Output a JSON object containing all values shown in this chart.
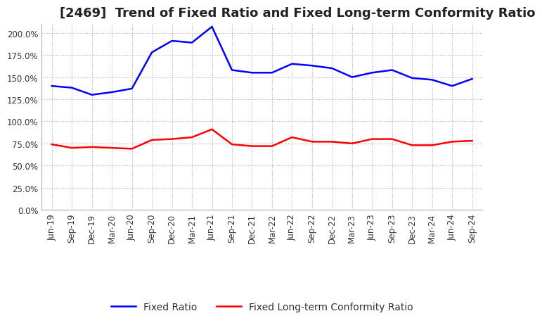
{
  "title": "[2469]  Trend of Fixed Ratio and Fixed Long-term Conformity Ratio",
  "x_labels": [
    "Jun-19",
    "Sep-19",
    "Dec-19",
    "Mar-20",
    "Jun-20",
    "Sep-20",
    "Dec-20",
    "Mar-21",
    "Jun-21",
    "Sep-21",
    "Dec-21",
    "Mar-22",
    "Jun-22",
    "Sep-22",
    "Dec-22",
    "Mar-23",
    "Jun-23",
    "Sep-23",
    "Dec-23",
    "Mar-24",
    "Jun-24",
    "Sep-24"
  ],
  "fixed_ratio": [
    140,
    138,
    130,
    133,
    137,
    178,
    191,
    189,
    207,
    158,
    155,
    155,
    165,
    163,
    160,
    150,
    155,
    158,
    149,
    147,
    140,
    148
  ],
  "fixed_lt_ratio": [
    74,
    70,
    71,
    70,
    69,
    79,
    80,
    82,
    91,
    74,
    72,
    72,
    82,
    77,
    77,
    75,
    80,
    80,
    73,
    73,
    77,
    78
  ],
  "fixed_ratio_color": "#0000FF",
  "fixed_lt_ratio_color": "#FF0000",
  "ylim": [
    0,
    210
  ],
  "yticks": [
    0,
    25,
    50,
    75,
    100,
    125,
    150,
    175,
    200
  ],
  "background_color": "#FFFFFF",
  "grid_color": "#AAAAAA",
  "legend_fixed_ratio": "Fixed Ratio",
  "legend_fixed_lt_ratio": "Fixed Long-term Conformity Ratio",
  "title_fontsize": 13,
  "axis_fontsize": 8.5,
  "legend_fontsize": 10
}
